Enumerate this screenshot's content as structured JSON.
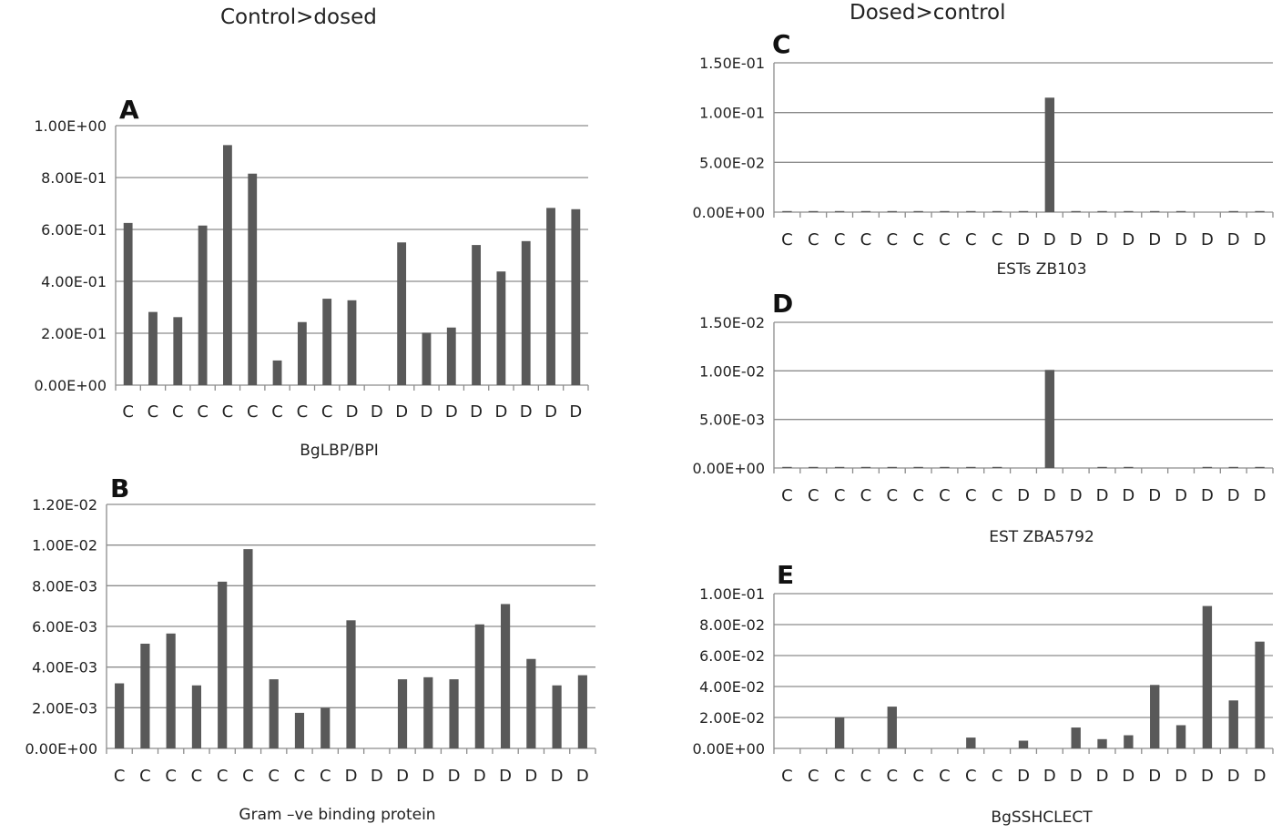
{
  "headings": {
    "left": "Control>dosed",
    "right": "Dosed>control"
  },
  "chart_data": [
    {
      "id": "A",
      "type": "bar",
      "panel_label": "A",
      "xlabel": "BgLBP/BPI",
      "categories": [
        "C",
        "C",
        "C",
        "C",
        "C",
        "C",
        "C",
        "C",
        "C",
        "D",
        "D",
        "D",
        "D",
        "D",
        "D",
        "D",
        "D",
        "D",
        "D"
      ],
      "values": [
        0.625,
        0.282,
        0.262,
        0.615,
        0.925,
        0.815,
        0.095,
        0.243,
        0.333,
        0.327,
        0,
        0.55,
        0.202,
        0.222,
        0.54,
        0.438,
        0.555,
        0.683,
        0.678
      ],
      "ylim": [
        0,
        1.0
      ],
      "yticks": [
        "0.00E+00",
        "2.00E-01",
        "4.00E-01",
        "6.00E-01",
        "8.00E-01",
        "1.00E+00"
      ],
      "grid": true,
      "bar_color": "#595959"
    },
    {
      "id": "B",
      "type": "bar",
      "panel_label": "B",
      "xlabel": "Gram –ve binding protein",
      "categories": [
        "C",
        "C",
        "C",
        "C",
        "C",
        "C",
        "C",
        "C",
        "C",
        "D",
        "D",
        "D",
        "D",
        "D",
        "D",
        "D",
        "D",
        "D",
        "D"
      ],
      "values": [
        0.0032,
        0.00515,
        0.00565,
        0.0031,
        0.0082,
        0.0098,
        0.0034,
        0.00175,
        0.002,
        0.0063,
        0,
        0.0034,
        0.0035,
        0.0034,
        0.0061,
        0.0071,
        0.0044,
        0.0031,
        0.0036
      ],
      "ylim": [
        0,
        0.012
      ],
      "yticks": [
        "0.00E+00",
        "2.00E-03",
        "4.00E-03",
        "6.00E-03",
        "8.00E-03",
        "1.00E-02",
        "1.20E-02"
      ],
      "grid": true,
      "bar_color": "#595959"
    },
    {
      "id": "C",
      "type": "bar",
      "panel_label": "C",
      "xlabel": "ESTs ZB103",
      "categories": [
        "C",
        "C",
        "C",
        "C",
        "C",
        "C",
        "C",
        "C",
        "C",
        "D",
        "D",
        "D",
        "D",
        "D",
        "D",
        "D",
        "D",
        "D",
        "D"
      ],
      "values": [
        0.0003,
        0.0003,
        0.0003,
        0.0003,
        0.0003,
        0.0003,
        0.0003,
        0.0003,
        0.0003,
        0.0003,
        0.115,
        0.0003,
        0.0003,
        0.0003,
        0.0003,
        0.0003,
        0,
        0.0003,
        0.0003
      ],
      "ylim": [
        0,
        0.15
      ],
      "yticks": [
        "0.00E+00",
        "5.00E-02",
        "1.00E-01",
        "1.50E-01"
      ],
      "grid": true,
      "bar_color": "#595959"
    },
    {
      "id": "D",
      "type": "bar",
      "panel_label": "D",
      "xlabel": "EST ZBA5792",
      "categories": [
        "C",
        "C",
        "C",
        "C",
        "C",
        "C",
        "C",
        "C",
        "C",
        "D",
        "D",
        "D",
        "D",
        "D",
        "D",
        "D",
        "D",
        "D",
        "D"
      ],
      "values": [
        3e-05,
        3e-05,
        3e-05,
        3e-05,
        3e-05,
        3e-05,
        3e-05,
        3e-05,
        3e-05,
        0,
        0.0101,
        0,
        3e-05,
        3e-05,
        0,
        0,
        3e-05,
        3e-05,
        3e-05
      ],
      "ylim": [
        0,
        0.015
      ],
      "yticks": [
        "0.00E+00",
        "5.00E-03",
        "1.00E-02",
        "1.50E-02"
      ],
      "grid": true,
      "bar_color": "#595959"
    },
    {
      "id": "E",
      "type": "bar",
      "panel_label": "E",
      "xlabel": "BgSSHCLECT",
      "categories": [
        "C",
        "C",
        "C",
        "C",
        "C",
        "C",
        "C",
        "C",
        "C",
        "D",
        "D",
        "D",
        "D",
        "D",
        "D",
        "D",
        "D",
        "D",
        "D"
      ],
      "values": [
        0,
        0,
        0.02,
        0,
        0.027,
        0,
        0,
        0.007,
        0,
        0.005,
        0,
        0.0135,
        0.006,
        0.0085,
        0.041,
        0.015,
        0.092,
        0.031,
        0.069
      ],
      "ylim": [
        0,
        0.1
      ],
      "yticks": [
        "0.00E+00",
        "2.00E-02",
        "4.00E-02",
        "6.00E-02",
        "8.00E-02",
        "1.00E-01"
      ],
      "grid": true,
      "bar_color": "#595959"
    }
  ]
}
